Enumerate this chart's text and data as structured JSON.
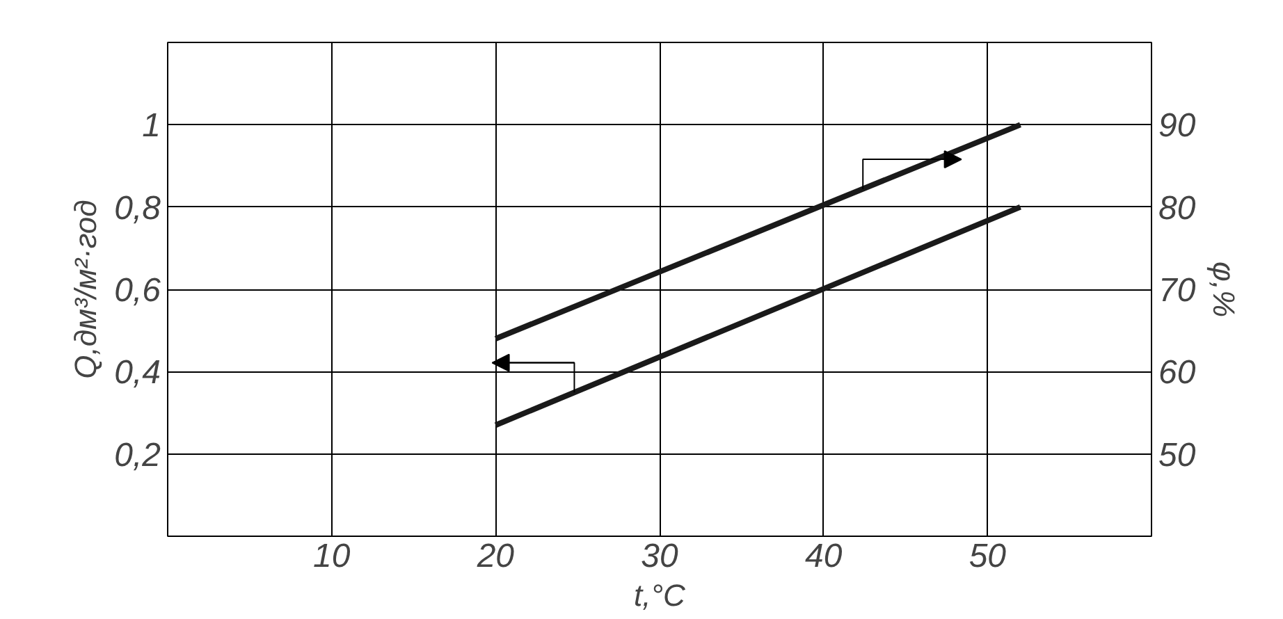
{
  "chart_data": {
    "type": "line",
    "xlabel": "t,°C",
    "ylabel": "Q,дм³/м²·год",
    "y2label": "φ,%",
    "xlim": [
      0,
      60
    ],
    "xticks": [
      10,
      20,
      30,
      40,
      50
    ],
    "ylim": [
      0,
      1.2
    ],
    "yticks": [
      {
        "value": 0.2,
        "label": "0,2"
      },
      {
        "value": 0.4,
        "label": "0,4"
      },
      {
        "value": 0.6,
        "label": "0,6"
      },
      {
        "value": 0.8,
        "label": "0,8"
      },
      {
        "value": 1,
        "label": "1"
      }
    ],
    "y2lim": [
      40,
      100
    ],
    "y2ticks": [
      50,
      60,
      70,
      80,
      90
    ],
    "grid": true,
    "line_style": "solid",
    "x": [
      20,
      52
    ],
    "series": [
      {
        "color": "#1a1a1a",
        "values": [
          0.27,
          0.8
        ]
      },
      {
        "color": "#1a1a1a",
        "values": [
          64,
          90
        ],
        "axis": "y2"
      }
    ]
  }
}
